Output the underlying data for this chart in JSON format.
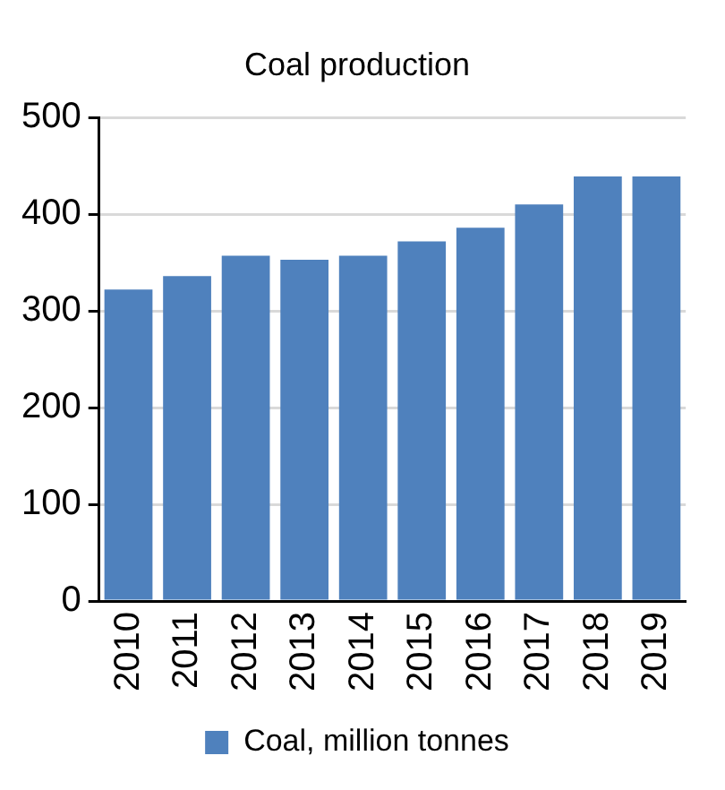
{
  "chart_data": {
    "type": "bar",
    "title": "Coal production",
    "categories": [
      "2010",
      "2011",
      "2012",
      "2013",
      "2014",
      "2015",
      "2016",
      "2017",
      "2018",
      "2019"
    ],
    "series": [
      {
        "name": "Coal, million tonnes",
        "color": "#4f81bd",
        "values": [
          322,
          336,
          357,
          353,
          357,
          372,
          386,
          410,
          439,
          439
        ]
      }
    ],
    "ylim": [
      0,
      500
    ],
    "yticks": [
      0,
      100,
      200,
      300,
      400,
      500
    ],
    "grid": "y",
    "legend": "bottom"
  }
}
